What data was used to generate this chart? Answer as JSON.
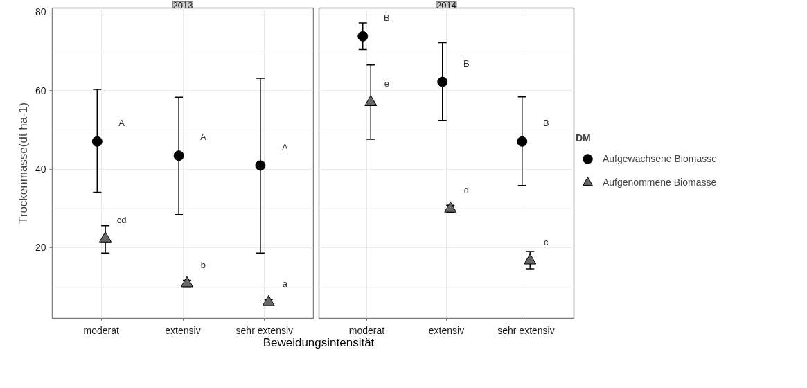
{
  "chart_data": [
    {
      "type": "scatter",
      "title": "2013",
      "ylabel": "Trockenmasse(dt ha-1)",
      "xlabel": "Beweidungsintensität",
      "categories": [
        "moderat",
        "extensiv",
        "sehr extensiv"
      ],
      "ylim": [
        2,
        81
      ],
      "yticks": [
        20,
        40,
        60,
        80
      ],
      "grid": true,
      "legend": "right",
      "legend_title": "DM",
      "series": [
        {
          "name": "Aufgewachsene Biomasse",
          "color": "#000000",
          "marker": "circle",
          "values": [
            47.0,
            43.4,
            40.9
          ],
          "errors": [
            [
              34.1,
              60.3
            ],
            [
              28.4,
              58.3
            ],
            [
              18.6,
              63.1
            ]
          ]
        },
        {
          "name": "Aufgenommene Biomasse",
          "color": "#666666",
          "marker": "triangle",
          "values": [
            22.3,
            10.9,
            6.1
          ],
          "errors": [
            [
              18.6,
              25.6
            ],
            [
              10.1,
              11.7
            ],
            [
              5.6,
              6.8
            ]
          ]
        }
      ],
      "annotations": [
        "A",
        "A",
        "A",
        "cd",
        "b",
        "a"
      ]
    },
    {
      "type": "scatter",
      "title": "2014",
      "categories": [
        "moderat",
        "extensiv",
        "sehr extensiv"
      ],
      "ylim": [
        2,
        81
      ],
      "yticks": [
        20,
        40,
        60,
        80
      ],
      "grid": true,
      "tick_labels": "x",
      "series": [
        {
          "color": "#000000",
          "marker": "circle",
          "values": [
            73.8,
            62.2,
            47.0
          ],
          "errors": [
            [
              70.4,
              77.2
            ],
            [
              52.4,
              72.2
            ],
            [
              35.8,
              58.4
            ]
          ]
        },
        {
          "color": "#666666",
          "marker": "triangle",
          "values": [
            57.0,
            29.9,
            16.7
          ],
          "errors": [
            [
              47.6,
              66.5
            ],
            [
              29.0,
              30.8
            ],
            [
              14.6,
              19.0
            ]
          ]
        }
      ],
      "annotations": [
        "B",
        "B",
        "B",
        "e",
        "d",
        "c"
      ]
    }
  ]
}
